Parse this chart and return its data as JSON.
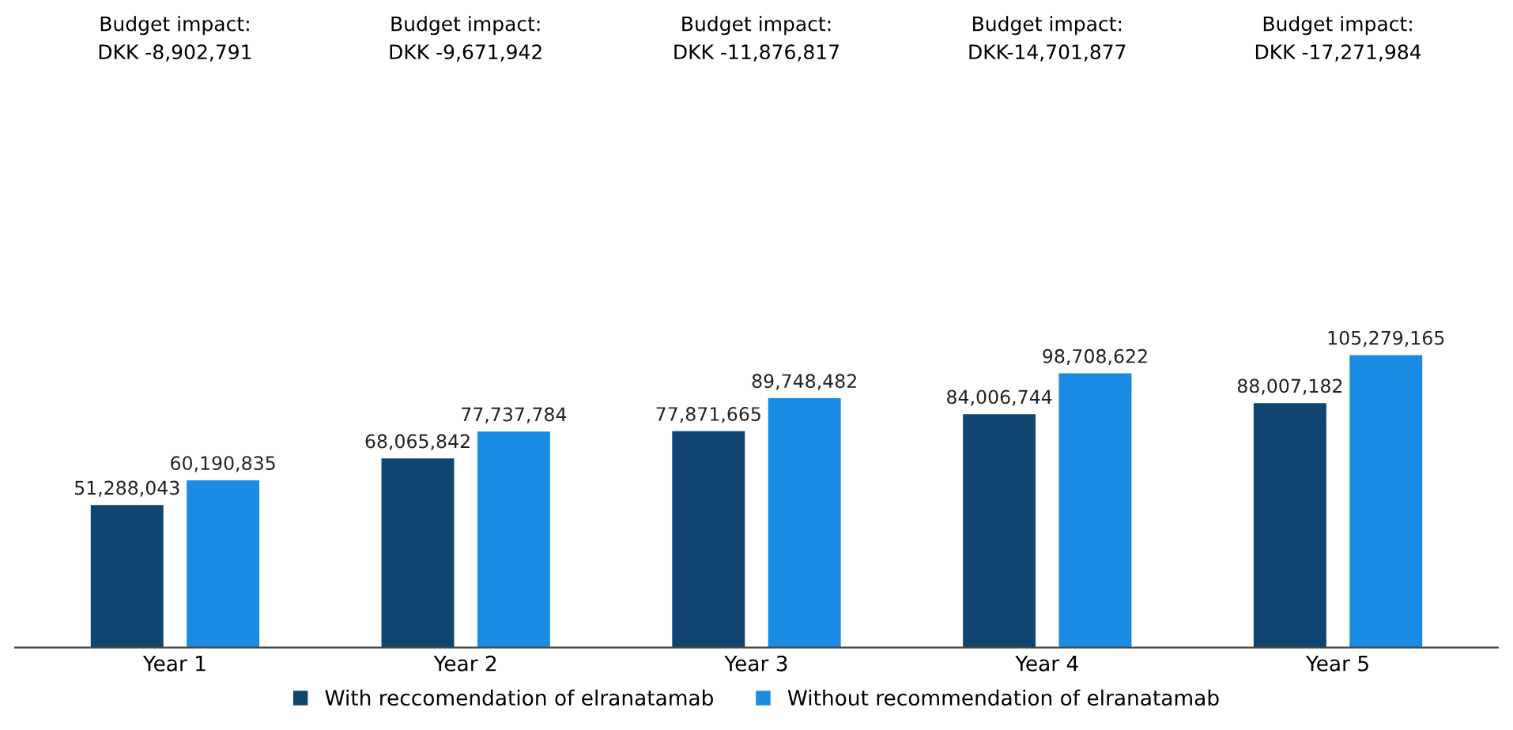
{
  "chart_data": {
    "type": "bar",
    "categories": [
      "Year 1",
      "Year 2",
      "Year 3",
      "Year 4",
      "Year 5"
    ],
    "series": [
      {
        "name": "With reccomendation of elranatamab",
        "color": "#0f4570",
        "values": [
          51288043,
          68065842,
          77871665,
          84006744,
          88007182
        ],
        "value_labels": [
          "51,288,043",
          "68,065,842",
          "77,871,665",
          "84,006,744",
          "88,007,182"
        ]
      },
      {
        "name": "Without recommendation of elranatamab",
        "color": "#1a8be3",
        "values": [
          60190835,
          77737784,
          89748482,
          98708622,
          105279165
        ],
        "value_labels": [
          "60,190,835",
          "77,737,784",
          "89,748,482",
          "98,708,622",
          "105,279,165"
        ]
      }
    ],
    "annotations": [
      "Budget impact:\nDKK -8,902,791",
      "Budget impact:\nDKK -9,671,942",
      "Budget impact:\nDKK -11,876,817",
      "Budget impact:\nDKK-14,701,877",
      "Budget impact:\nDKK -17,271,984"
    ],
    "legend": "bottom",
    "grid": false
  }
}
